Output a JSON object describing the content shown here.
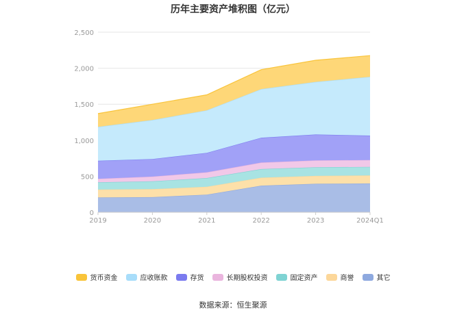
{
  "title": "历年主要资产堆积图（亿元）",
  "source": "数据来源：恒生聚源",
  "chart_data": {
    "type": "area",
    "stacked": true,
    "title": "历年主要资产堆积图（亿元）",
    "categories": [
      "2019",
      "2020",
      "2021",
      "2022",
      "2023",
      "2024Q1"
    ],
    "yticks": [
      "0",
      "500",
      "1,000",
      "1,500",
      "2,000",
      "2,500"
    ],
    "ylim": [
      0,
      2500
    ],
    "grid": true,
    "legend_position": "bottom",
    "series": [
      {
        "name": "其它",
        "color": "#a9bde6",
        "legend_color": "#8ea9df",
        "values": [
          205,
          210,
          245,
          370,
          395,
          400
        ]
      },
      {
        "name": "商誉",
        "color": "#fde0a9",
        "legend_color": "#fcd79a",
        "values": [
          110,
          110,
          110,
          110,
          110,
          110
        ]
      },
      {
        "name": "固定资产",
        "color": "#a8e3e3",
        "legend_color": "#7fd3d3",
        "values": [
          100,
          110,
          120,
          120,
          120,
          120
        ]
      },
      {
        "name": "长期股权投资",
        "color": "#f1c8e8",
        "legend_color": "#eab5de",
        "values": [
          50,
          65,
          80,
          90,
          95,
          95
        ]
      },
      {
        "name": "存货",
        "color": "#a1a1f7",
        "legend_color": "#7b7bef",
        "values": [
          250,
          245,
          270,
          345,
          360,
          340
        ]
      },
      {
        "name": "应收账款",
        "color": "#c5eafc",
        "legend_color": "#a8ddfa",
        "values": [
          470,
          540,
          590,
          675,
          730,
          815
        ]
      },
      {
        "name": "货币资金",
        "color": "#fed778",
        "legend_color": "#f9c43a",
        "values": [
          185,
          220,
          215,
          270,
          300,
          295
        ]
      }
    ],
    "legend_order": [
      "货币资金",
      "应收账款",
      "存货",
      "长期股权投资",
      "固定资产",
      "商誉",
      "其它"
    ]
  }
}
